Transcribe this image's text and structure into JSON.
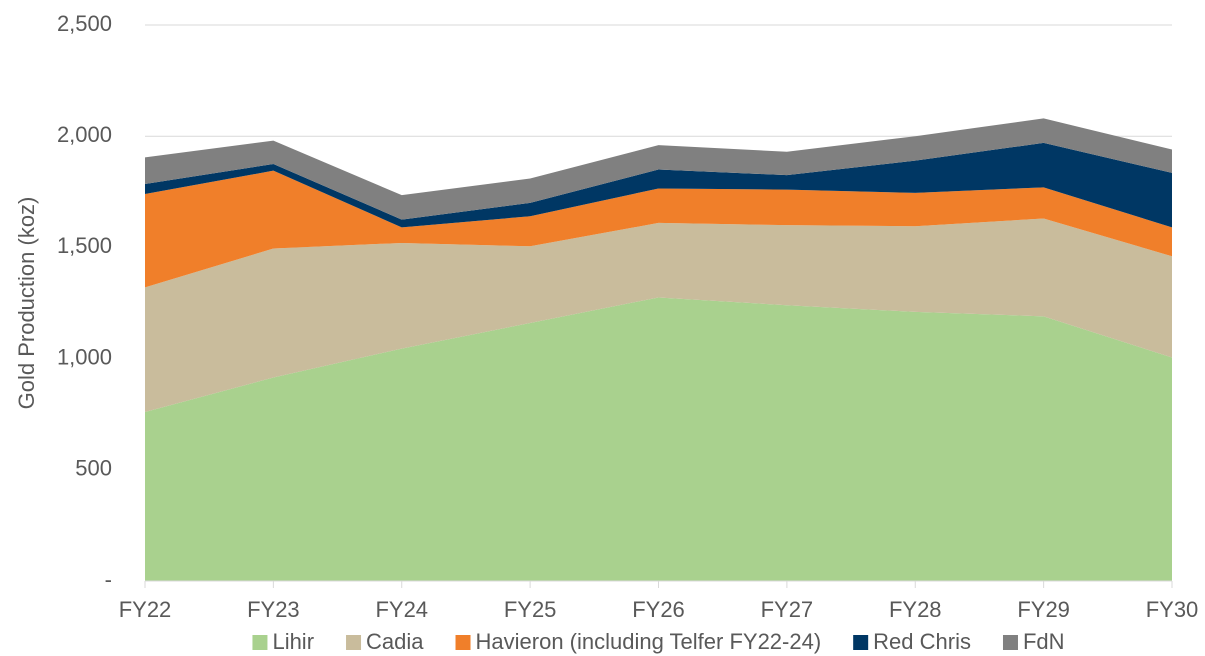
{
  "chart_data": {
    "type": "stacked-area",
    "y_label": "Gold Production (koz)",
    "categories": [
      "FY22",
      "FY23",
      "FY24",
      "FY25",
      "FY26",
      "FY27",
      "FY28",
      "FY29",
      "FY30"
    ],
    "series": [
      {
        "name": "Lihir",
        "color": "#a9d18e",
        "values": [
          760,
          915,
          1045,
          1160,
          1275,
          1240,
          1210,
          1190,
          1005
        ]
      },
      {
        "name": "Cadia",
        "color": "#c9bc9c",
        "values": [
          560,
          580,
          475,
          345,
          335,
          360,
          385,
          440,
          455
        ]
      },
      {
        "name": "Havieron (including Telfer FY22-24)",
        "color": "#f07f2a",
        "values": [
          420,
          350,
          70,
          135,
          155,
          160,
          150,
          140,
          130
        ]
      },
      {
        "name": "Red Chris",
        "color": "#003764",
        "values": [
          45,
          30,
          35,
          60,
          85,
          65,
          145,
          200,
          245
        ]
      },
      {
        "name": "FdN",
        "color": "#808080",
        "values": [
          120,
          105,
          110,
          110,
          110,
          105,
          110,
          110,
          105
        ]
      }
    ],
    "ylim": [
      0,
      2500
    ],
    "yticks": [
      {
        "value": 0,
        "label": "-"
      },
      500,
      {
        "value": 1000,
        "label": "1,000"
      },
      {
        "value": 1500,
        "label": "1,500"
      },
      {
        "value": 2000,
        "label": "2,000"
      },
      {
        "value": 2500,
        "label": "2,500"
      }
    ],
    "grid": true,
    "legend": "bottom"
  }
}
